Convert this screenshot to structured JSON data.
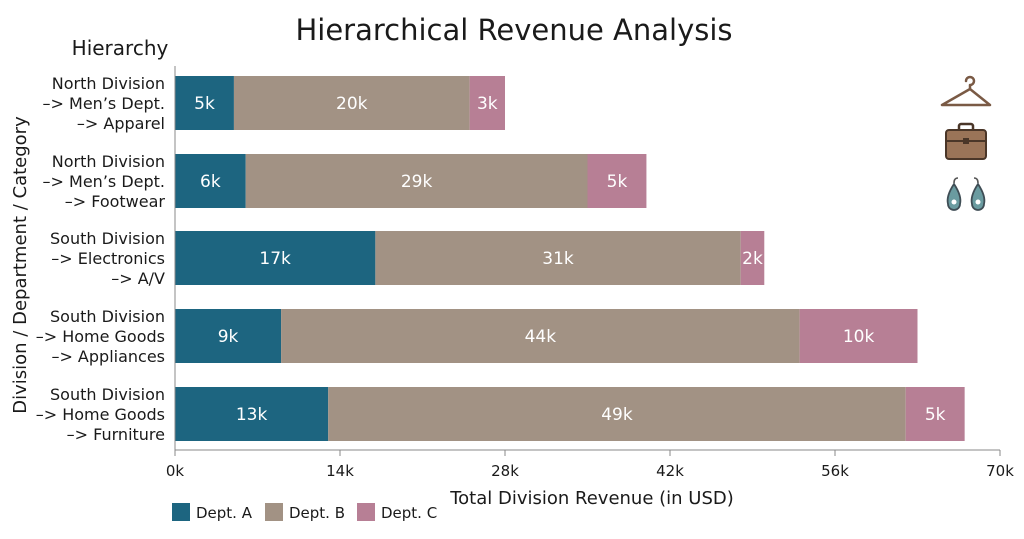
{
  "chart_data": {
    "type": "bar",
    "orientation": "horizontal",
    "stacked": true,
    "title": "Hierarchical Revenue Analysis",
    "hierarchy_label": "Hierarchy",
    "xlabel": "Total Division Revenue (in USD)",
    "ylabel": "Division / Department / Category",
    "xlim": [
      0,
      70000
    ],
    "x_ticks": [
      0,
      14000,
      28000,
      42000,
      56000,
      70000
    ],
    "x_tick_labels": [
      "0k",
      "14k",
      "28k",
      "42k",
      "56k",
      "70k"
    ],
    "categories": [
      [
        "North Division",
        "–> Men’s Dept.",
        "–> Apparel"
      ],
      [
        "North Division",
        "–> Men’s Dept.",
        "–> Footwear"
      ],
      [
        "South Division",
        "–> Electronics",
        "–> A/V"
      ],
      [
        "South Division",
        "–> Home Goods",
        "–> Appliances"
      ],
      [
        "South Division",
        "–> Home Goods",
        "–> Furniture"
      ]
    ],
    "series": [
      {
        "name": "Dept. A",
        "color": "#1d6580",
        "values": [
          5000,
          6000,
          17000,
          9000,
          13000
        ],
        "labels": [
          "5k",
          "6k",
          "17k",
          "9k",
          "13k"
        ]
      },
      {
        "name": "Dept. B",
        "color": "#a29284",
        "values": [
          20000,
          29000,
          31000,
          44000,
          49000
        ],
        "labels": [
          "20k",
          "29k",
          "31k",
          "44k",
          "49k"
        ]
      },
      {
        "name": "Dept. C",
        "color": "#b77f95",
        "values": [
          3000,
          5000,
          2000,
          10000,
          5000
        ],
        "labels": [
          "3k",
          "5k",
          "2k",
          "10k",
          "5k"
        ]
      }
    ],
    "legend_position": "bottom-left",
    "grid": false,
    "icons": [
      "hanger-icon",
      "briefcase-icon",
      "earrings-icon"
    ]
  }
}
